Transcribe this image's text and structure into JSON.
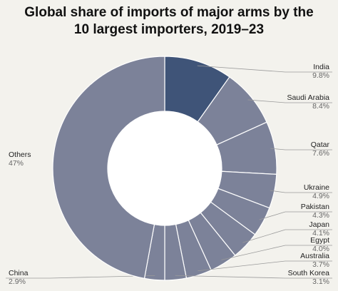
{
  "chart_data": {
    "type": "pie",
    "donut": true,
    "title_line1": "Global share of imports of major arms by the",
    "title_line2": "10 largest importers, 2019–23",
    "unit": "%",
    "slices": [
      {
        "name": "India",
        "value": 9.8,
        "label": "9.8%",
        "color": "#3f5478"
      },
      {
        "name": "Saudi Arabia",
        "value": 8.4,
        "label": "8.4%",
        "color": "#7c8299"
      },
      {
        "name": "Qatar",
        "value": 7.6,
        "label": "7.6%",
        "color": "#7c8299"
      },
      {
        "name": "Ukraine",
        "value": 4.9,
        "label": "4.9%",
        "color": "#7c8299"
      },
      {
        "name": "Pakistan",
        "value": 4.3,
        "label": "4.3%",
        "color": "#7c8299"
      },
      {
        "name": "Japan",
        "value": 4.1,
        "label": "4.1%",
        "color": "#7c8299"
      },
      {
        "name": "Egypt",
        "value": 4.0,
        "label": "4.0%",
        "color": "#7c8299"
      },
      {
        "name": "Australia",
        "value": 3.7,
        "label": "3.7%",
        "color": "#7c8299"
      },
      {
        "name": "South Korea",
        "value": 3.1,
        "label": "3.1%",
        "color": "#7c8299"
      },
      {
        "name": "China",
        "value": 2.9,
        "label": "2.9%",
        "color": "#7c8299"
      },
      {
        "name": "Others",
        "value": 47,
        "label": "47%",
        "color": "#7c8299"
      }
    ],
    "background": "#f3f2ed",
    "slice_border": "#ffffff"
  }
}
